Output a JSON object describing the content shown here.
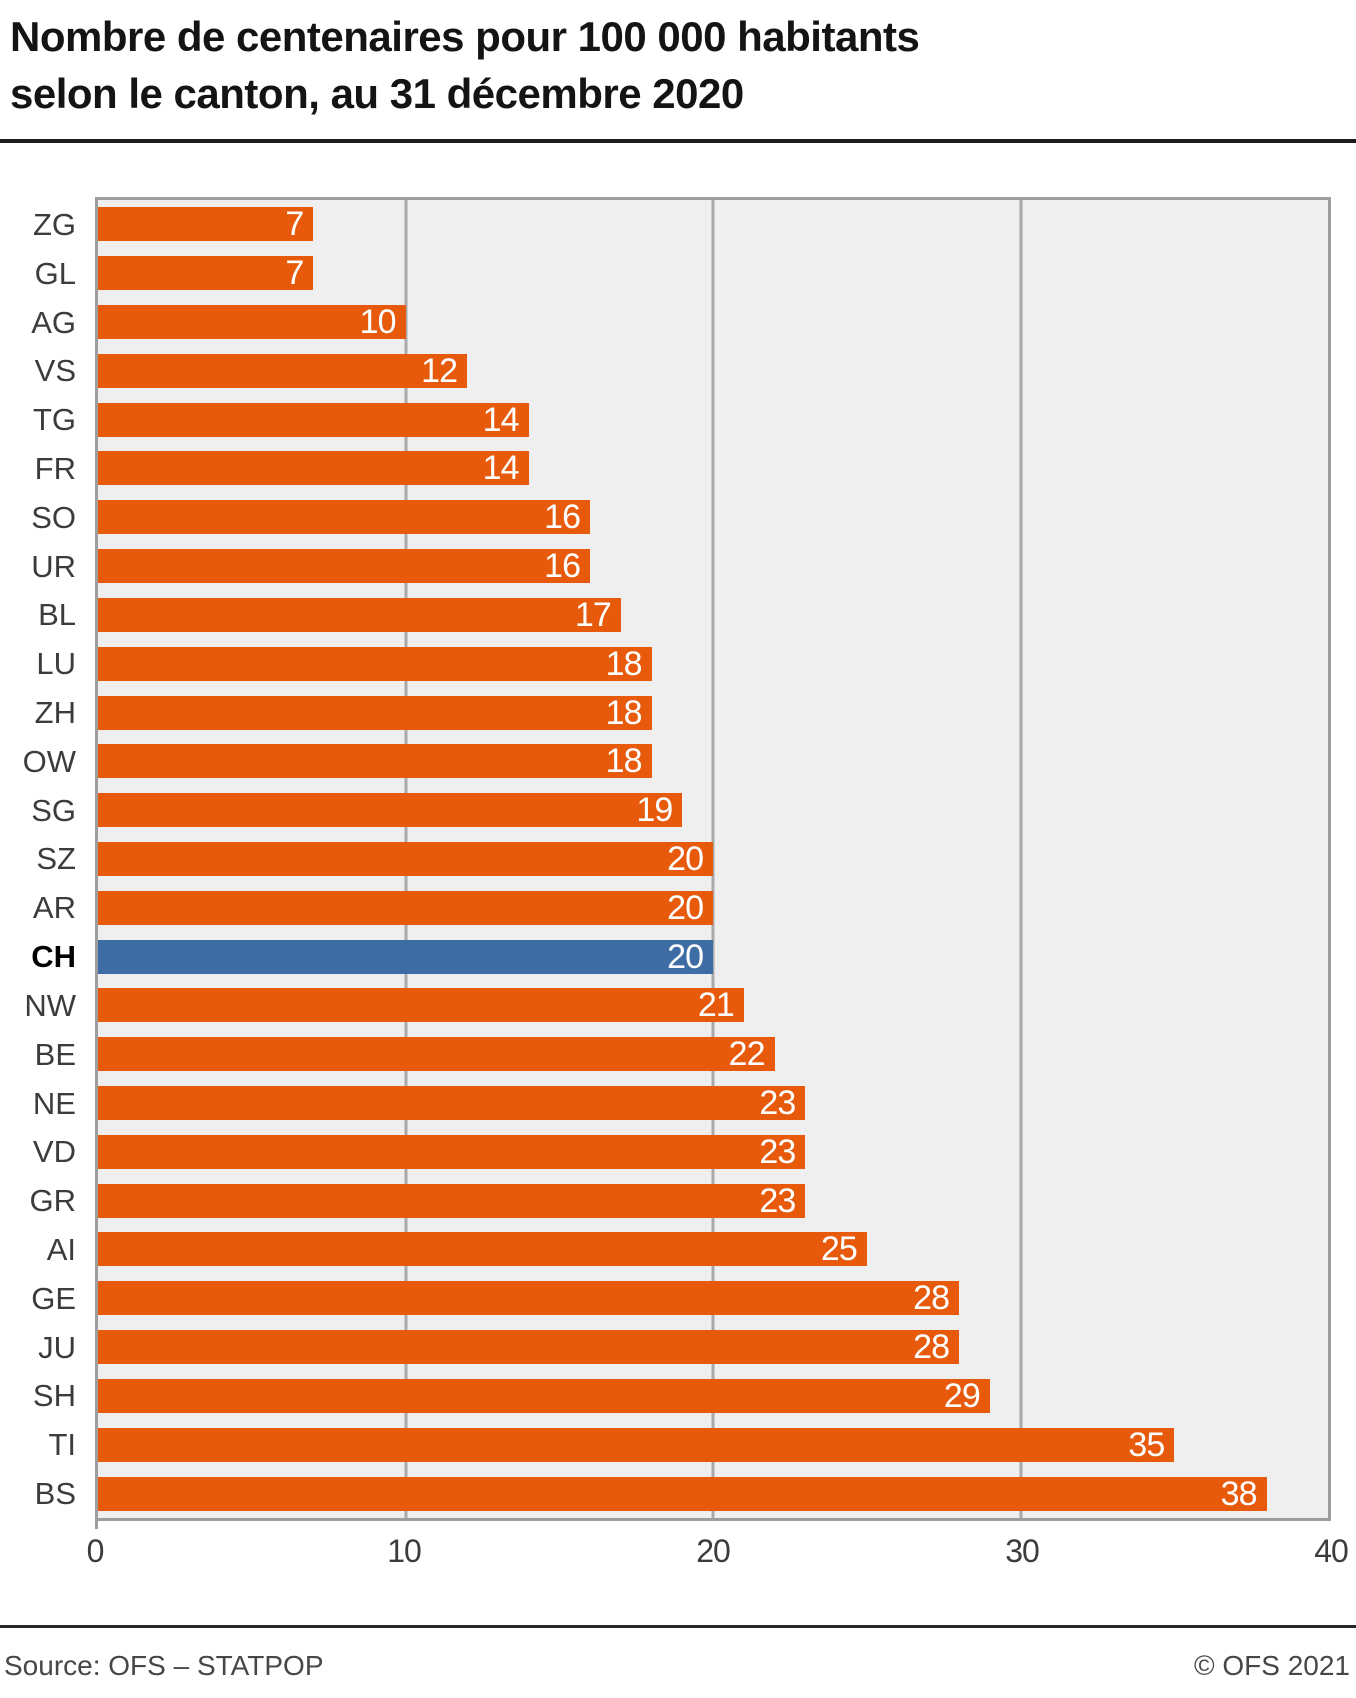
{
  "header": {
    "title_line1": "Nombre de centenaires pour 100 000 habitants",
    "title_line2": "selon le canton, au 31 décembre 2020"
  },
  "footer": {
    "source": "Source: OFS – STATPOP",
    "copyright": "© OFS 2021"
  },
  "chart_data": {
    "type": "bar",
    "orientation": "horizontal",
    "title": "Nombre de centenaires pour 100 000 habitants selon le canton, au 31 décembre 2020",
    "categories": [
      "ZG",
      "GL",
      "AG",
      "VS",
      "TG",
      "FR",
      "SO",
      "UR",
      "BL",
      "LU",
      "ZH",
      "OW",
      "SG",
      "SZ",
      "AR",
      "CH",
      "NW",
      "BE",
      "NE",
      "VD",
      "GR",
      "AI",
      "GE",
      "JU",
      "SH",
      "TI",
      "BS"
    ],
    "values": [
      7,
      7,
      10,
      12,
      14,
      14,
      16,
      16,
      17,
      18,
      18,
      18,
      19,
      20,
      20,
      20,
      21,
      22,
      23,
      23,
      23,
      25,
      28,
      28,
      29,
      35,
      38
    ],
    "highlight_category": "CH",
    "xlim": [
      0,
      40
    ],
    "xticks": [
      0,
      10,
      20,
      30,
      40
    ],
    "value_labels": "inside-end",
    "grid": "vertical",
    "colors": {
      "bar": "#e75a0b",
      "highlight": "#3d6da4",
      "plot_bg": "#efefef",
      "gridline": "#a9a9a9",
      "plot_border": "#9d9d9d"
    }
  }
}
